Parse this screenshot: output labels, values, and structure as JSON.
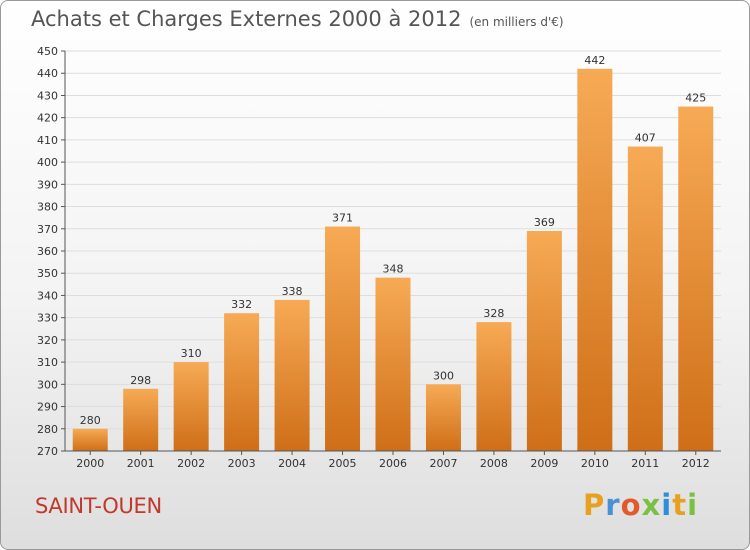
{
  "header": {
    "title": "Achats et Charges Externes 2000 à 2012",
    "unit": "(en milliers d'€)"
  },
  "footer": {
    "city": "SAINT-OUEN",
    "logo_text": "Proxiti",
    "logo_colors": [
      "#e8a020",
      "#4a90d9",
      "#e05a2a",
      "#7ac143",
      "#2f8fd6",
      "#e8a020",
      "#7ac143"
    ]
  },
  "colors": {
    "bar_light": "#f7aa55",
    "bar_dark": "#cf6e18",
    "grid": "#dddddd",
    "axis": "#555555",
    "text": "#333333"
  },
  "chart_data": {
    "type": "bar",
    "title": "Achats et Charges Externes 2000 à 2012",
    "subtitle": "(en milliers d'€)",
    "categories": [
      "2000",
      "2001",
      "2002",
      "2003",
      "2004",
      "2005",
      "2006",
      "2007",
      "2008",
      "2009",
      "2010",
      "2011",
      "2012"
    ],
    "values": [
      280,
      298,
      310,
      332,
      338,
      371,
      348,
      300,
      328,
      369,
      442,
      407,
      425
    ],
    "ylim": [
      270,
      450
    ],
    "yticks": [
      270,
      280,
      290,
      300,
      310,
      320,
      330,
      340,
      350,
      360,
      370,
      380,
      390,
      400,
      410,
      420,
      430,
      440,
      450
    ],
    "grid": true,
    "xlabel": "",
    "ylabel": ""
  }
}
